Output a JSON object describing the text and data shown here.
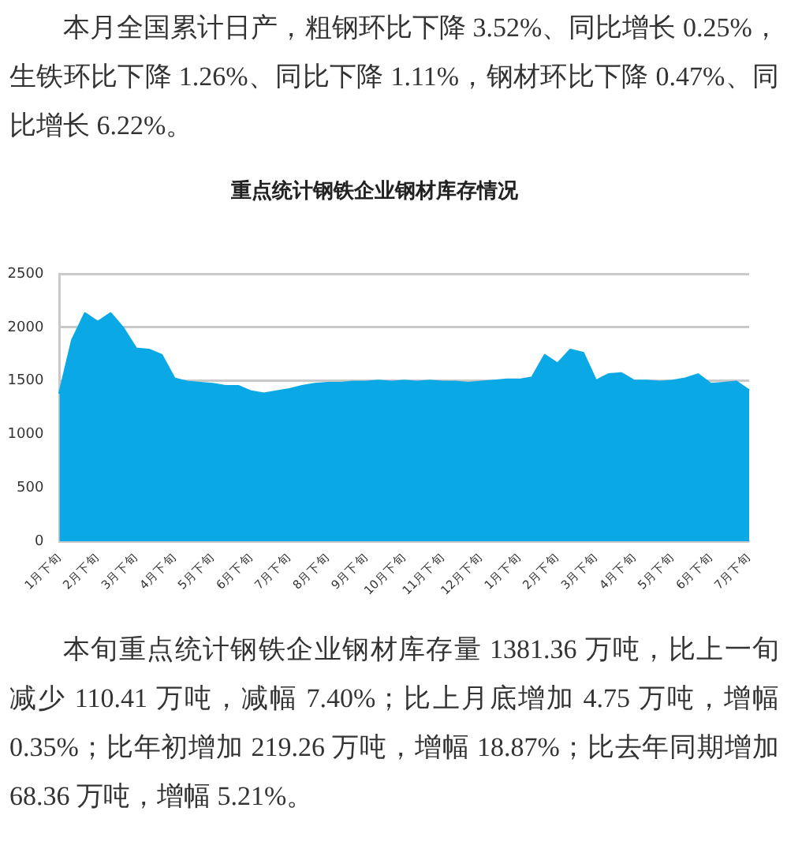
{
  "chart_data": {
    "type": "area",
    "title": "重点统计钢铁企业钢材库存情况",
    "annotations": [
      "本月全国累计日产，粗钢环比下降 3.52%、同比增长 0.25%，生铁环比下降 1.26%、同比下降 1.11%，钢材环比下降 0.47%、同比增长 6.22%。",
      "本旬重点统计钢铁企业钢材库存量 1381.36 万吨，比上一旬减少 110.41 万吨，减幅 7.40%；比上月底增加 4.75 万吨，增幅 0.35%；比年初增加 219.26 万吨，增幅 18.87%；比去年同期增加 68.36 万吨，增幅 5.21%。"
    ],
    "categories": [
      "1月下旬",
      null,
      null,
      "2月下旬",
      null,
      null,
      "3月下旬",
      null,
      null,
      "4月下旬",
      null,
      null,
      "5月下旬",
      null,
      null,
      "6月下旬",
      null,
      null,
      "7月下旬",
      null,
      null,
      "8月下旬",
      null,
      null,
      "9月下旬",
      null,
      null,
      "10月下旬",
      null,
      null,
      "11月下旬",
      null,
      null,
      "12月下旬",
      null,
      null,
      "1月下旬",
      null,
      null,
      "2月下旬",
      null,
      null,
      "3月下旬",
      null,
      null,
      "4月下旬",
      null,
      null,
      "5月下旬",
      null,
      null,
      "6月下旬",
      null,
      null,
      "7月下旬"
    ],
    "values": [
      1380,
      1880,
      2130,
      2050,
      2130,
      1990,
      1800,
      1790,
      1740,
      1520,
      1490,
      1480,
      1470,
      1450,
      1450,
      1400,
      1380,
      1400,
      1420,
      1450,
      1470,
      1480,
      1480,
      1490,
      1490,
      1500,
      1490,
      1500,
      1490,
      1500,
      1490,
      1490,
      1480,
      1490,
      1500,
      1510,
      1510,
      1530,
      1740,
      1660,
      1790,
      1760,
      1500,
      1560,
      1570,
      1500,
      1500,
      1490,
      1500,
      1520,
      1560,
      1470,
      1480,
      1490,
      1410
    ],
    "color": "#0aa9e6",
    "ylim": [
      0,
      2500
    ],
    "yticks": [
      0,
      500,
      1000,
      1500,
      2000,
      2500
    ],
    "grid": "y",
    "marker": "none"
  }
}
